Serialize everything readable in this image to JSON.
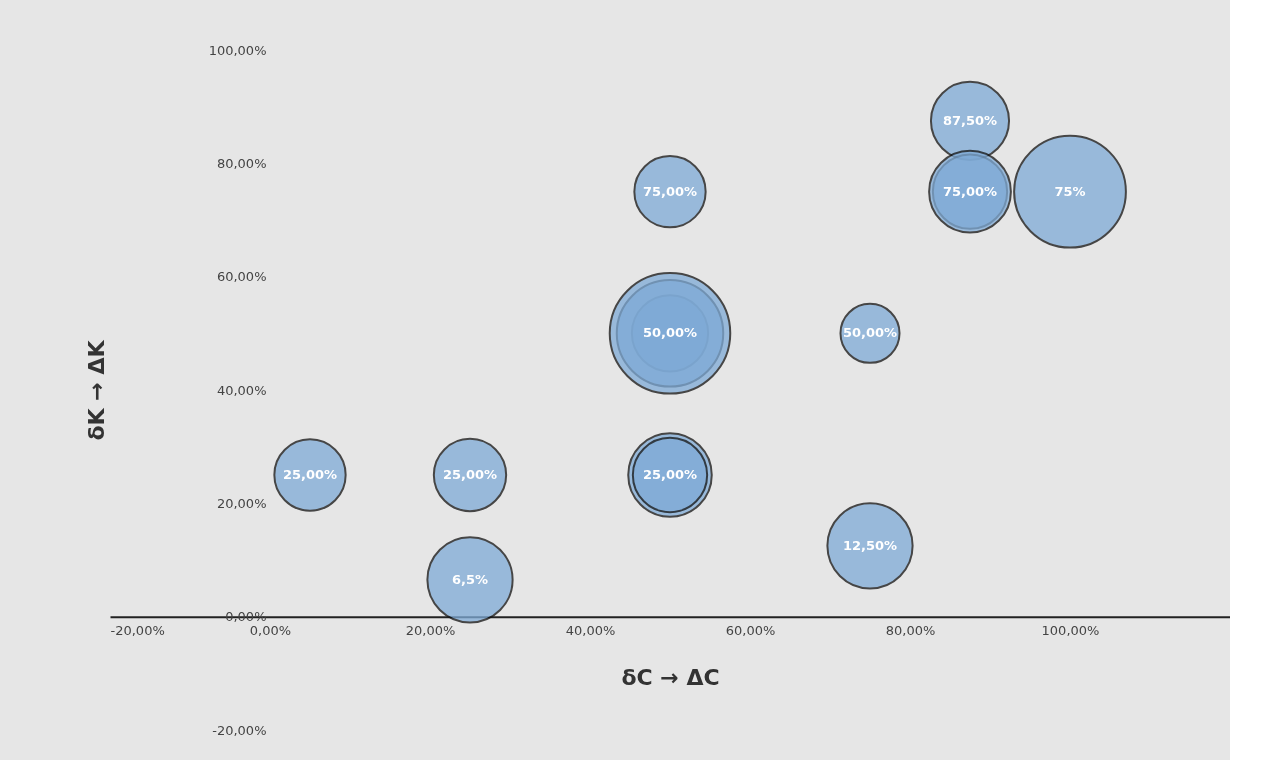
{
  "chart_data": {
    "type": "bubble",
    "xlabel": "δC → ΔC",
    "ylabel": "δK → ΔK",
    "x": [
      5,
      25,
      25,
      50,
      50,
      50,
      50,
      50,
      50,
      75,
      75,
      87.5,
      87.5,
      87.5,
      100
    ],
    "series": [
      {
        "color": "#7eaad6",
        "values": [
          25,
          25,
          6.5,
          25,
          25,
          50,
          50,
          50,
          75,
          50,
          12.5,
          87.5,
          75,
          75,
          75
        ],
        "sizes": [
          0.35,
          0.36,
          0.5,
          0.48,
          0.38,
          0.4,
          0.78,
          1,
          0.35,
          0.24,
          0.5,
          0.42,
          0.38,
          0.46,
          0.86
        ],
        "value_labels": [
          "25,00%",
          "25,00%",
          "6,5%",
          "25,00%",
          null,
          null,
          null,
          "50,00%",
          "75,00%",
          "50,00%",
          "12,50%",
          "87,50%",
          null,
          "75,00%",
          "75%"
        ]
      }
    ],
    "xlim": [
      -20,
      120
    ],
    "ylim": [
      -20,
      100
    ],
    "xticks": [
      {
        "value": -20,
        "label": "-20,00%"
      },
      {
        "value": 0,
        "label": "0,00%"
      },
      {
        "value": 20,
        "label": "20,00%"
      },
      {
        "value": 40,
        "label": "40,00%"
      },
      {
        "value": 60,
        "label": "60,00%"
      },
      {
        "value": 80,
        "label": "80,00%"
      },
      {
        "value": 100,
        "label": "100,00%"
      }
    ],
    "yticks": [
      {
        "value": -20,
        "label": "-20,00%"
      },
      {
        "value": 0,
        "label": "0,00%"
      },
      {
        "value": 20,
        "label": "20,00%"
      },
      {
        "value": 40,
        "label": "40,00%"
      },
      {
        "value": 60,
        "label": "60,00%"
      },
      {
        "value": 80,
        "label": "80,00%"
      },
      {
        "value": 100,
        "label": "100,00%"
      }
    ],
    "grid": false
  }
}
